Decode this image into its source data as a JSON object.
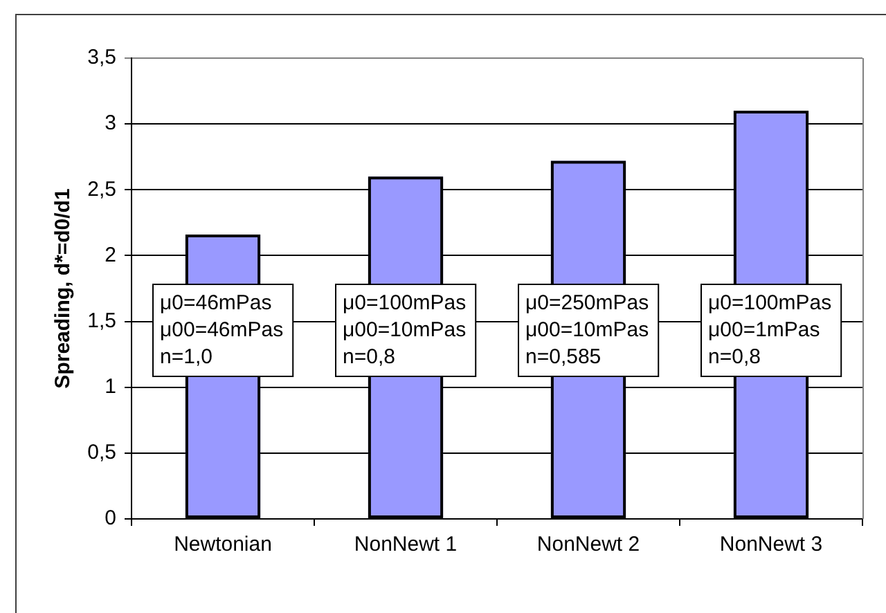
{
  "chart_data": {
    "type": "bar",
    "ylabel": "Spreading, d*=d0/d1",
    "categories": [
      "Newtonian",
      "NonNewt 1",
      "NonNewt 2",
      "NonNewt 3"
    ],
    "values": [
      2.16,
      2.6,
      2.72,
      3.1
    ],
    "color": "#9999ff",
    "ylim": [
      0,
      3.5
    ],
    "yticks": [
      0,
      {
        "value": 0.5,
        "label": "0,5"
      },
      1,
      {
        "value": 1.5,
        "label": "1,5"
      },
      2,
      {
        "value": 2.5,
        "label": "2,5"
      },
      3,
      {
        "value": 3.5,
        "label": "3,5"
      }
    ],
    "grid": "y",
    "annotations": [
      "μ0=46mPas\nμ00=46mPas\nn=1,0",
      "μ0=100mPas\nμ00=10mPas\nn=0,8",
      "μ0=250mPas\nμ00=10mPas\nn=0,585",
      "μ0=100mPas\nμ00=1mPas\nn=0,8"
    ]
  }
}
